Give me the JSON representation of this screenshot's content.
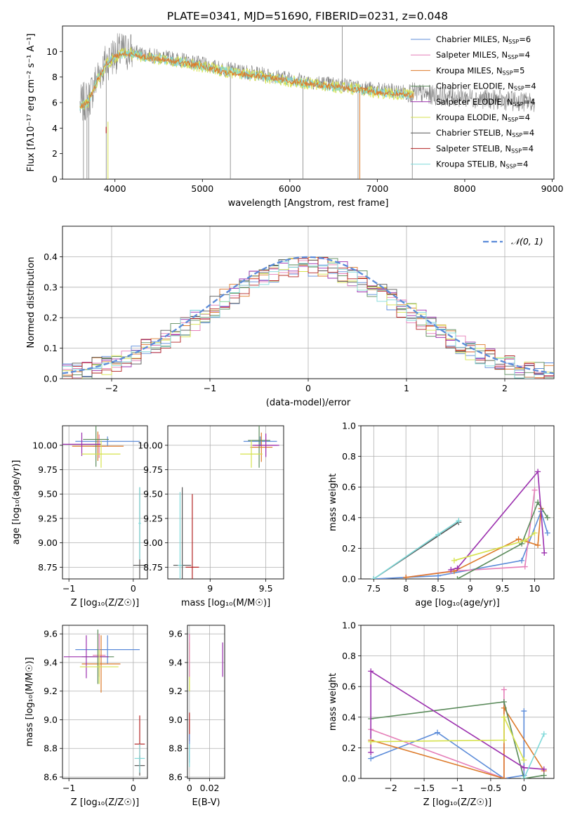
{
  "title": "PLATE=0341, MJD=51690, FIBERID=0231, z=0.048",
  "colors": {
    "Chabrier MILES": "#5b8bd9",
    "Salpeter MILES": "#e57fb8",
    "Kroupa MILES": "#dd7a2a",
    "Chabrier ELODIE": "#5a8a5a",
    "Salpeter ELODIE": "#9b2fae",
    "Kroupa ELODIE": "#d6e24c",
    "Chabrier STELIB": "#555555",
    "Salpeter STELIB": "#b22222",
    "Kroupa STELIB": "#7fd9d9",
    "data": "#808080"
  },
  "chart_data": [
    {
      "type": "line",
      "panel": "spectrum",
      "title": "PLATE=0341, MJD=51690, FIBERID=0231, z=0.048",
      "xlabel": "wavelength [Angstrom, rest frame]",
      "ylabel": "Flux [fλ10⁻¹⁷ erg cm⁻² s⁻¹ A⁻¹]",
      "xlim": [
        3400,
        9020
      ],
      "ylim": [
        0,
        12
      ],
      "xticks": [
        4000,
        5000,
        6000,
        7000,
        8000,
        9000
      ],
      "yticks": [
        0,
        2,
        4,
        6,
        8,
        10
      ],
      "grid": false,
      "legend_position": "upper right",
      "legend": [
        {
          "name": "Chabrier MILES",
          "nssp": "6"
        },
        {
          "name": "Salpeter MILES",
          "nssp": "4"
        },
        {
          "name": "Kroupa MILES",
          "nssp": "5"
        },
        {
          "name": "Chabrier ELODIE",
          "nssp": "4"
        },
        {
          "name": "Salpeter ELODIE",
          "nssp": "4"
        },
        {
          "name": "Kroupa ELODIE",
          "nssp": "4"
        },
        {
          "name": "Chabrier STELIB",
          "nssp": "4"
        },
        {
          "name": "Salpeter STELIB",
          "nssp": "4"
        },
        {
          "name": "Kroupa STELIB",
          "nssp": "4"
        }
      ],
      "continuum": {
        "x": [
          3600,
          3700,
          3800,
          3900,
          4000,
          4100,
          4200,
          4400,
          4600,
          4800,
          5000,
          5200,
          5400,
          5600,
          5800,
          6000,
          6200,
          6400,
          6600,
          6800,
          7000,
          7200,
          7400,
          7600,
          7800,
          8000,
          8200,
          8400,
          8600,
          8800
        ],
        "y": [
          5.8,
          6.3,
          8.0,
          9.2,
          9.8,
          10.0,
          10.0,
          9.7,
          9.5,
          9.3,
          9.0,
          8.7,
          8.5,
          8.3,
          8.1,
          7.9,
          7.7,
          7.5,
          7.4,
          7.2,
          7.0,
          6.9,
          6.8,
          6.6,
          6.5,
          6.4,
          6.3,
          6.2,
          6.1,
          6.0
        ]
      }
    },
    {
      "type": "line",
      "panel": "residuals",
      "xlabel": "(data-model)/error",
      "ylabel": "Normed distribution",
      "xlim": [
        -2.5,
        2.5
      ],
      "ylim": [
        0,
        0.5
      ],
      "xticks": [
        -2,
        -1,
        0,
        1,
        2
      ],
      "yticks": [
        0.0,
        0.1,
        0.2,
        0.3,
        0.4
      ],
      "grid": true,
      "legend_position": "upper right",
      "legend": "𝒩(0, 1)",
      "gaussian": {
        "mu": 0,
        "sigma": 1
      }
    },
    {
      "type": "scatter",
      "panel": "age-vs-Z",
      "xlabel": "Z [log₁₀(Z/Z☉)]",
      "ylabel": "age  [log₁₀(age/yr)]",
      "xlim": [
        -1.1,
        0.22
      ],
      "ylim": [
        8.63,
        10.2
      ],
      "xticks": [
        -1,
        0
      ],
      "yticks": [
        8.75,
        9.0,
        9.25,
        9.5,
        9.75,
        10.0
      ],
      "grid": true,
      "points": [
        {
          "model": "Chabrier MILES",
          "x": -0.4,
          "y": 10.04,
          "xerr": 0.5,
          "yerr": 0.05
        },
        {
          "model": "Salpeter MILES",
          "x": -0.53,
          "y": 9.99,
          "xerr": 0.1,
          "yerr": 0.12
        },
        {
          "model": "Kroupa MILES",
          "x": -0.55,
          "y": 9.99,
          "xerr": 0.4,
          "yerr": 0.15
        },
        {
          "model": "Chabrier ELODIE",
          "x": -0.58,
          "y": 10.06,
          "xerr": 0.2,
          "yerr": 0.28
        },
        {
          "model": "Salpeter ELODIE",
          "x": -0.8,
          "y": 10.01,
          "xerr": 0.3,
          "yerr": 0.12
        },
        {
          "model": "Kroupa ELODIE",
          "x": -0.5,
          "y": 9.91,
          "xerr": 0.3,
          "yerr": 0.14
        },
        {
          "model": "Chabrier STELIB",
          "x": 0.1,
          "y": 8.77,
          "xerr": 0.1,
          "yerr": 0.8
        },
        {
          "model": "Kroupa STELIB",
          "x": 0.1,
          "y": 9.2,
          "xerr": 0.02,
          "yerr": 0.37
        }
      ]
    },
    {
      "type": "scatter",
      "panel": "age-vs-mass",
      "xlabel": "mass [log₁₀(M/M☉)]",
      "ylabel": "",
      "xlim": [
        8.62,
        9.66
      ],
      "ylim": [
        8.63,
        10.2
      ],
      "xticks": [
        9.0,
        9.5
      ],
      "yticks": [
        8.75,
        9.0,
        9.25,
        9.5,
        9.75,
        10.0
      ],
      "grid": true,
      "points": [
        {
          "model": "Chabrier MILES",
          "x": 9.45,
          "y": 10.04,
          "xerr": 0.15,
          "yerr": 0.05
        },
        {
          "model": "Salpeter MILES",
          "x": 9.5,
          "y": 10.0,
          "xerr": 0.1,
          "yerr": 0.12
        },
        {
          "model": "Kroupa MILES",
          "x": 9.46,
          "y": 9.98,
          "xerr": 0.1,
          "yerr": 0.15
        },
        {
          "model": "Chabrier ELODIE",
          "x": 9.44,
          "y": 10.05,
          "xerr": 0.1,
          "yerr": 0.28
        },
        {
          "model": "Salpeter ELODIE",
          "x": 9.5,
          "y": 10.0,
          "xerr": 0.12,
          "yerr": 0.12
        },
        {
          "model": "Kroupa ELODIE",
          "x": 9.37,
          "y": 9.91,
          "xerr": 0.1,
          "yerr": 0.14
        },
        {
          "model": "Chabrier STELIB",
          "x": 8.75,
          "y": 8.77,
          "xerr": 0.08,
          "yerr": 0.8
        },
        {
          "model": "Salpeter STELIB",
          "x": 8.84,
          "y": 8.75,
          "xerr": 0.06,
          "yerr": 0.75
        },
        {
          "model": "Kroupa STELIB",
          "x": 8.73,
          "y": 8.77,
          "xerr": 0.02,
          "yerr": 0.75
        }
      ]
    },
    {
      "type": "line",
      "panel": "massweight-vs-age",
      "xlabel": "age  [log₁₀(age/yr)]",
      "ylabel": "mass weight",
      "xlim": [
        7.3,
        10.3
      ],
      "ylim": [
        0,
        1.0
      ],
      "xticks": [
        7.5,
        8.0,
        8.5,
        9.0,
        9.5,
        10.0
      ],
      "yticks": [
        0.0,
        0.2,
        0.4,
        0.6,
        0.8,
        1.0
      ],
      "grid": true,
      "series": [
        {
          "model": "Chabrier MILES",
          "x": [
            7.5,
            8.0,
            8.5,
            9.8,
            10.1,
            10.2
          ],
          "y": [
            0.0,
            0.01,
            0.02,
            0.12,
            0.44,
            0.3
          ]
        },
        {
          "model": "Salpeter MILES",
          "x": [
            8.0,
            8.7,
            9.85,
            10.0
          ],
          "y": [
            0.01,
            0.05,
            0.08,
            0.58
          ]
        },
        {
          "model": "Kroupa MILES",
          "x": [
            8.0,
            8.75,
            9.75,
            10.05,
            10.1
          ],
          "y": [
            0.01,
            0.05,
            0.26,
            0.22,
            0.46
          ]
        },
        {
          "model": "Chabrier ELODIE",
          "x": [
            8.8,
            9.8,
            10.05,
            10.2
          ],
          "y": [
            0.0,
            0.23,
            0.5,
            0.4
          ]
        },
        {
          "model": "Salpeter ELODIE",
          "x": [
            8.7,
            8.8,
            10.05,
            10.15
          ],
          "y": [
            0.06,
            0.07,
            0.7,
            0.17
          ]
        },
        {
          "model": "Kroupa ELODIE",
          "x": [
            8.75,
            9.85,
            10.0
          ],
          "y": [
            0.12,
            0.25,
            0.3
          ]
        },
        {
          "model": "Chabrier STELIB",
          "x": [
            7.5,
            8.82
          ],
          "y": [
            0.0,
            0.37
          ]
        },
        {
          "model": "Kroupa STELIB",
          "x": [
            7.5,
            8.5,
            8.82
          ],
          "y": [
            0.0,
            0.29,
            0.38
          ]
        }
      ]
    },
    {
      "type": "scatter",
      "panel": "mass-vs-Z",
      "xlabel": "Z [log₁₀(Z/Z☉)]",
      "ylabel": "mass [log₁₀(M/M☉)]",
      "xlim": [
        -1.1,
        0.22
      ],
      "ylim": [
        8.59,
        9.66
      ],
      "xticks": [
        -1,
        0
      ],
      "yticks": [
        8.6,
        8.8,
        9.0,
        9.2,
        9.4,
        9.6
      ],
      "grid": true,
      "points": [
        {
          "model": "Chabrier MILES",
          "x": -0.4,
          "y": 9.49,
          "xerr": 0.5,
          "yerr": 0.1
        },
        {
          "model": "Salpeter MILES",
          "x": -0.53,
          "y": 9.45,
          "xerr": 0.1,
          "yerr": 0.15
        },
        {
          "model": "Kroupa MILES",
          "x": -0.5,
          "y": 9.39,
          "xerr": 0.3,
          "yerr": 0.2
        },
        {
          "model": "Chabrier ELODIE",
          "x": -0.55,
          "y": 9.44,
          "xerr": 0.25,
          "yerr": 0.19
        },
        {
          "model": "Salpeter ELODIE",
          "x": -0.73,
          "y": 9.44,
          "xerr": 0.35,
          "yerr": 0.15
        },
        {
          "model": "Kroupa ELODIE",
          "x": -0.53,
          "y": 9.37,
          "xerr": 0.3,
          "yerr": 0.12
        },
        {
          "model": "Chabrier STELIB",
          "x": 0.1,
          "y": 8.68,
          "xerr": 0.08,
          "yerr": 0.07
        },
        {
          "model": "Salpeter STELIB",
          "x": 0.1,
          "y": 8.83,
          "xerr": 0.08,
          "yerr": 0.2
        },
        {
          "model": "Kroupa STELIB",
          "x": 0.1,
          "y": 8.73,
          "xerr": 0.08,
          "yerr": 0.1
        }
      ]
    },
    {
      "type": "scatter",
      "panel": "mass-vs-ebv",
      "xlabel": "E(B-V)",
      "ylabel": "",
      "xlim": [
        -0.002,
        0.035
      ],
      "ylim": [
        8.59,
        9.66
      ],
      "xticks": [
        0.0,
        0.02
      ],
      "yticks": [
        8.6,
        8.8,
        9.0,
        9.2,
        9.4,
        9.6
      ],
      "grid": true,
      "points": [
        {
          "model": "Salpeter ELODIE",
          "x": 0.033,
          "y": 9.42,
          "yerr": 0.12
        },
        {
          "model": "Kroupa ELODIE",
          "x": 0.0,
          "y": 9.37,
          "yerr": 0.17
        },
        {
          "model": "Salpeter MILES",
          "x": 0.0,
          "y": 9.45,
          "yerr": 0.15
        },
        {
          "model": "Salpeter STELIB",
          "x": 0.0,
          "y": 8.95,
          "yerr": 0.1
        },
        {
          "model": "Chabrier MILES",
          "x": 0.0,
          "y": 8.8,
          "yerr": 0.1
        },
        {
          "model": "Kroupa STELIB",
          "x": 0.0,
          "y": 8.75,
          "yerr": 0.08
        }
      ]
    },
    {
      "type": "line",
      "panel": "massweight-vs-Z",
      "xlabel": "Z [log₁₀(Z/Z☉)]",
      "ylabel": "mass weight",
      "xlim": [
        -2.45,
        0.45
      ],
      "ylim": [
        0,
        1.0
      ],
      "xticks": [
        -2.0,
        -1.5,
        -1.0,
        -0.5,
        0.0
      ],
      "yticks": [
        0.0,
        0.2,
        0.4,
        0.6,
        0.8,
        1.0
      ],
      "grid": true,
      "series": [
        {
          "model": "Chabrier MILES",
          "x": [
            -2.3,
            -1.3,
            -0.3,
            0.0,
            0.0
          ],
          "y": [
            0.13,
            0.3,
            0.0,
            0.02,
            0.44
          ]
        },
        {
          "model": "Salpeter MILES",
          "x": [
            -2.3,
            -0.3,
            -0.3
          ],
          "y": [
            0.32,
            0.0,
            0.58
          ]
        },
        {
          "model": "Kroupa MILES",
          "x": [
            -2.3,
            -0.3,
            -0.3,
            0.3
          ],
          "y": [
            0.25,
            0.0,
            0.46,
            0.05
          ]
        },
        {
          "model": "Chabrier ELODIE",
          "x": [
            -2.3,
            -0.3,
            0.0,
            0.3
          ],
          "y": [
            0.39,
            0.5,
            0.0,
            0.02
          ]
        },
        {
          "model": "Salpeter ELODIE",
          "x": [
            -2.3,
            -2.3,
            0.0,
            0.3
          ],
          "y": [
            0.17,
            0.7,
            0.07,
            0.06
          ]
        },
        {
          "model": "Kroupa ELODIE",
          "x": [
            -2.3,
            -0.3,
            -0.3,
            0.0
          ],
          "y": [
            0.24,
            0.25,
            0.4,
            0.12
          ]
        },
        {
          "model": "Kroupa STELIB",
          "x": [
            0.0,
            0.3
          ],
          "y": [
            0.0,
            0.29
          ]
        }
      ]
    }
  ]
}
